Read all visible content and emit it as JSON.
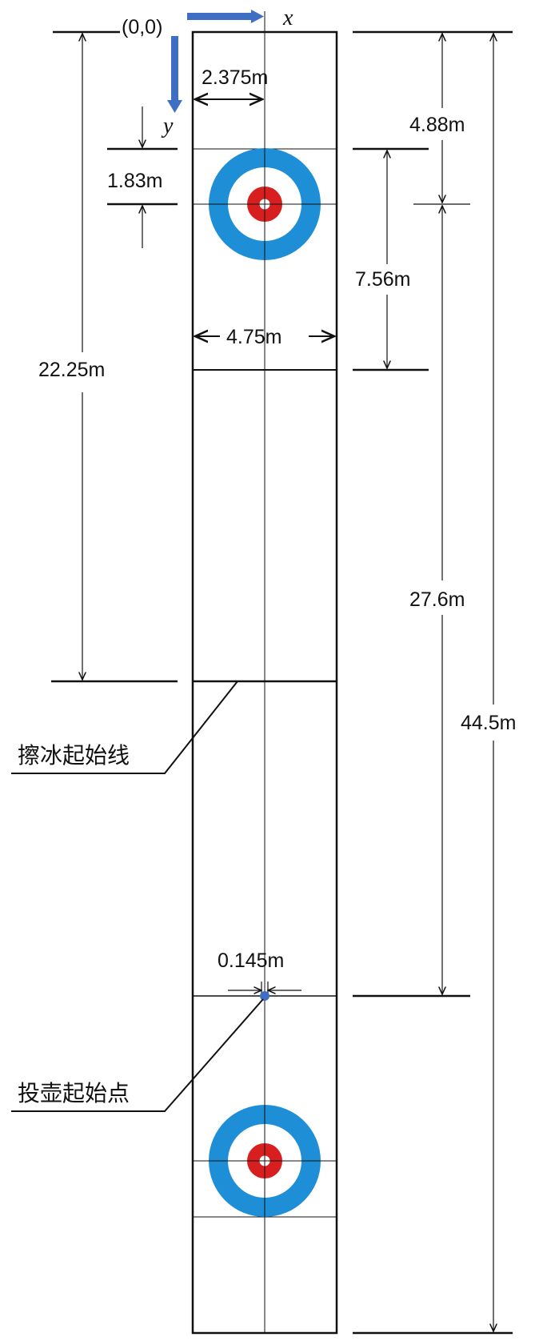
{
  "origin_label": "(0,0)",
  "axis": {
    "x_label": "x",
    "y_label": "y",
    "arrow_color": "#3f6fc4"
  },
  "dimensions": {
    "half_width": "2.375m",
    "tee_to_end": "4.88m",
    "house_half": "1.83m",
    "tee_to_hog": "7.56m",
    "sheet_width": "4.75m",
    "end_to_hog": "22.25m",
    "tee_to_start_line": "27.6m",
    "sheet_length": "44.5m",
    "offset": "0.145m"
  },
  "callouts": {
    "sweep_start_line": "擦冰起始线",
    "throw_start_point": "投壶起始点"
  },
  "colors": {
    "outer_ring": "#1e8fd6",
    "inner_ring": "#d81f1f",
    "white": "#ffffff",
    "line": "#111111",
    "point": "#3f6fc4"
  }
}
